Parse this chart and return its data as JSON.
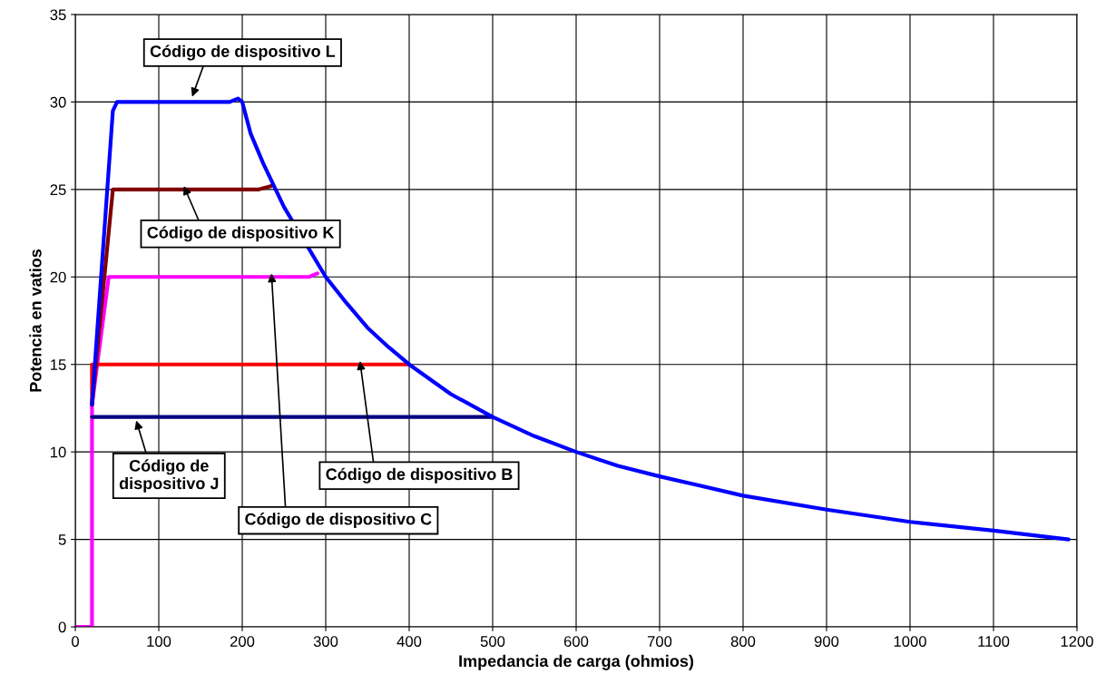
{
  "chart_data": {
    "type": "line",
    "xlabel": "Impedancia de carga (ohmios)",
    "ylabel": "Potencia en vatios",
    "series": [
      {
        "color": "#ff00ff",
        "x": [
          0,
          20,
          20,
          40,
          280,
          290
        ],
        "values": [
          0,
          0,
          12.7,
          20,
          20,
          20.2
        ]
      },
      {
        "color": "#ff0000",
        "x": [
          20,
          20,
          400
        ],
        "values": [
          12.7,
          15,
          15
        ]
      },
      {
        "color": "#000080",
        "x": [
          20,
          500
        ],
        "values": [
          12,
          12
        ]
      },
      {
        "color": "#800000",
        "x": [
          20,
          45,
          220,
          235
        ],
        "values": [
          12.7,
          25,
          25,
          25.2
        ]
      },
      {
        "color": "#0000ff",
        "x": [
          20,
          45,
          50,
          185,
          195,
          200,
          210,
          225,
          250,
          300,
          325,
          350,
          375,
          400,
          450,
          500,
          550,
          600,
          650,
          700,
          800,
          900,
          1000,
          1100,
          1190
        ],
        "values": [
          12.7,
          29.5,
          30,
          30,
          30.2,
          30,
          28.2,
          26.5,
          24,
          20,
          18.5,
          17.1,
          16,
          15,
          13.3,
          12,
          10.9,
          10,
          9.2,
          8.6,
          7.5,
          6.7,
          6,
          5.5,
          5
        ]
      }
    ],
    "xlim": [
      0,
      1200
    ],
    "xticks": [
      0,
      100,
      200,
      300,
      400,
      500,
      600,
      700,
      800,
      900,
      1000,
      1100,
      1200
    ],
    "ylim": [
      0,
      35
    ],
    "yticks": [
      0,
      5,
      10,
      15,
      20,
      25,
      30,
      35
    ],
    "grid": true,
    "legend": false,
    "line_style": "solid",
    "marker": "none",
    "annotations": [
      {
        "text": "Código de dispositivo L",
        "x": 140,
        "y": 30.3
      },
      {
        "text": "Código de dispositivo K",
        "x": 130,
        "y": 25.2
      },
      {
        "text": "Código de dispositivo C",
        "x": 235,
        "y": 20.2
      },
      {
        "text": "Código de dispositivo B",
        "x": 341,
        "y": 15.2
      },
      {
        "text": "Código de\ndispositivo J",
        "x": 73,
        "y": 11.8
      }
    ]
  }
}
